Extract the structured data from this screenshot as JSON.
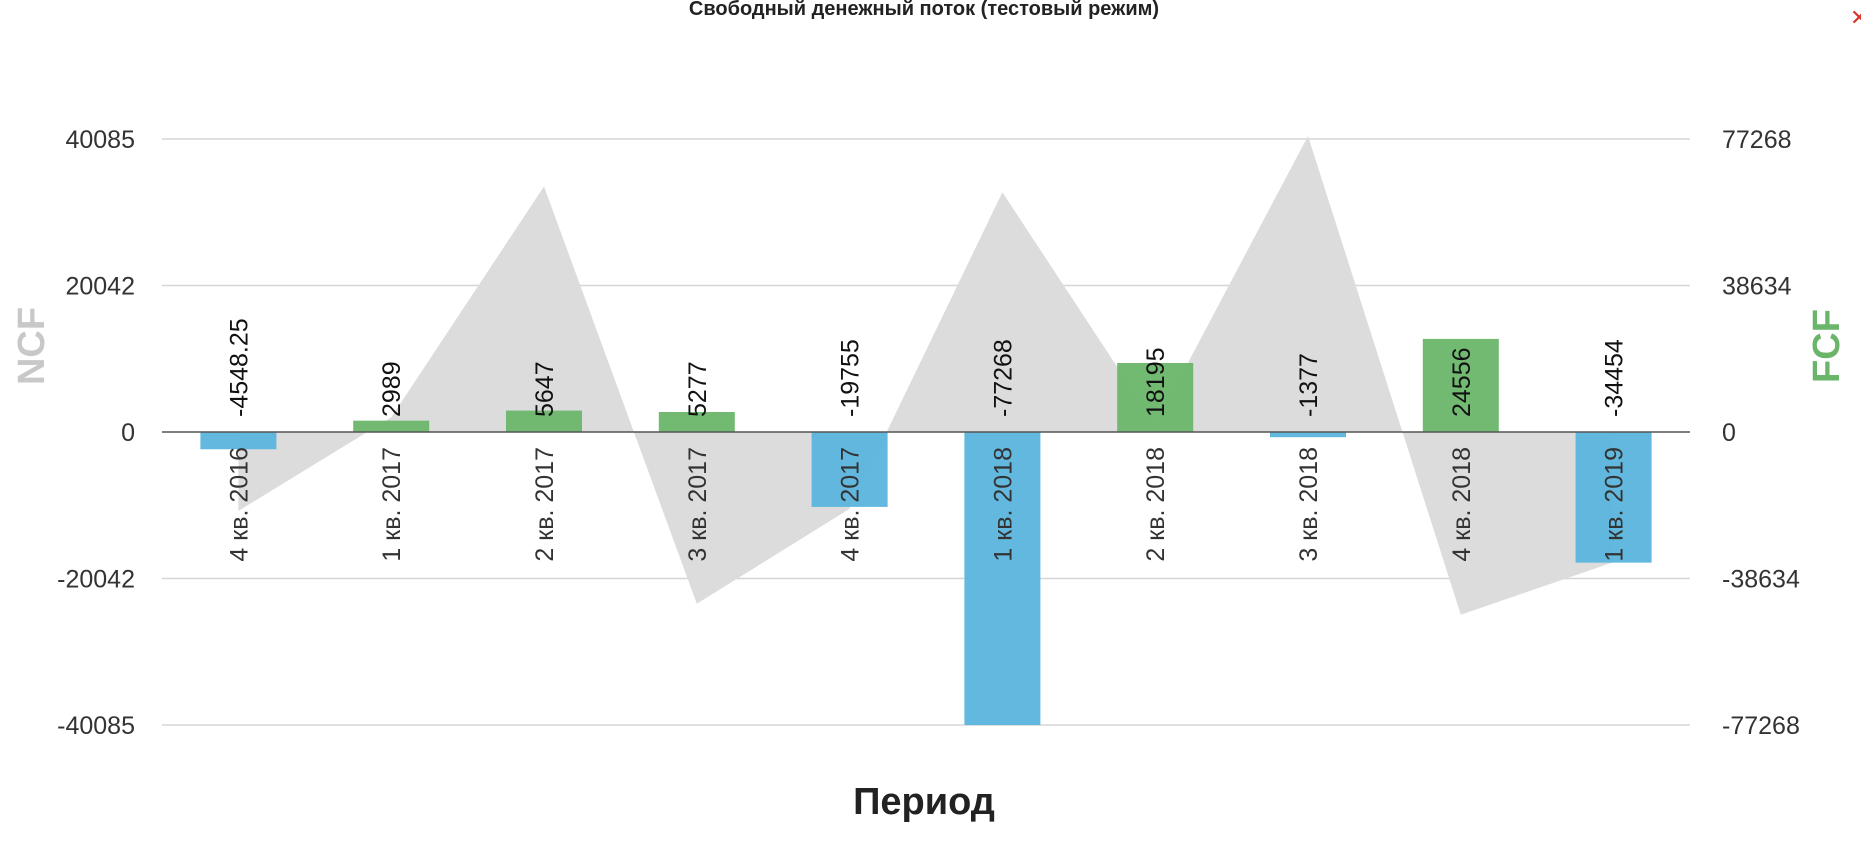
{
  "close_icon": "close-icon",
  "chart_data": {
    "type": "bar",
    "title": "Свободный денежный поток (тестовый режим)",
    "xlabel": "Период",
    "ylabel_left": "NCF",
    "ylabel_right": "FCF",
    "categories": [
      "4 кв. 2016",
      "1 кв. 2017",
      "2 кв. 2017",
      "3 кв. 2017",
      "4 кв. 2017",
      "1 кв. 2018",
      "2 кв. 2018",
      "3 кв. 2018",
      "4 кв. 2018",
      "1 кв. 2019"
    ],
    "ylim_left": [
      -40085,
      40085
    ],
    "ylim_right": [
      -77268,
      77268
    ],
    "yticks_left": [
      "40085",
      "20042",
      "0",
      "-20042",
      "-40085"
    ],
    "yticks_right": [
      "77268",
      "38634",
      "0",
      "-38634",
      "-77268"
    ],
    "grid": true,
    "series": [
      {
        "axis": "right",
        "type": "bar",
        "values": [
          -4548.25,
          2989,
          5647,
          5277,
          -19755,
          -77268,
          18195,
          -1377,
          24556,
          -34454
        ],
        "labels": [
          "-4548.25",
          "2989",
          "5647",
          "5277",
          "-19755",
          "-77268",
          "18195",
          "-1377",
          "24556",
          "-34454"
        ],
        "positive_color": "#6ab56a",
        "negative_color": "#5ab4dc"
      },
      {
        "axis": "left",
        "type": "area",
        "values": [
          -10800,
          2000,
          33600,
          -23500,
          -10500,
          32800,
          1000,
          40500,
          -25000,
          -17800
        ],
        "color": "#dcdcdc"
      }
    ],
    "colors": {
      "left_axis_label": "#c8c8c8",
      "right_axis_label": "#6ab56a",
      "grid": "#d6d6d6",
      "zero_line": "#555555"
    }
  }
}
